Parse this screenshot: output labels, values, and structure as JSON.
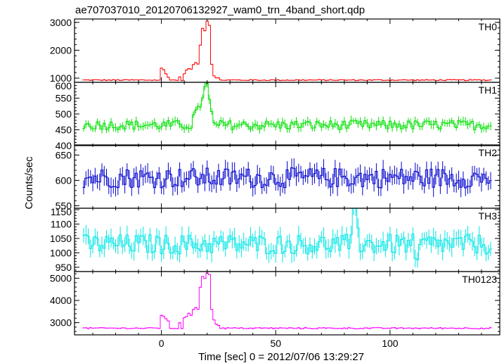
{
  "chart_data": {
    "type": "line",
    "title": "ae707037010_20120706132927_wam0_trn_4band_short.qdp",
    "xlabel": "Time [sec] 0 = 2012/07/06 13:29:27",
    "ylabel": "Counts/sec",
    "xlim": [
      -38,
      148
    ],
    "x_ticks": [
      0,
      50,
      100
    ],
    "series": [
      {
        "name": "TH0",
        "color": "#ff0000",
        "ylim": [
          850,
          3120
        ],
        "y_ticks": [
          1000,
          2000,
          3000
        ],
        "baseline": 930,
        "noise": 20,
        "bumps": [
          [
            0,
            1350
          ],
          [
            1,
            1300
          ],
          [
            2,
            1150
          ],
          [
            3,
            1050
          ],
          [
            8,
            1030
          ],
          [
            10,
            1150
          ],
          [
            11,
            1280
          ],
          [
            12,
            1350
          ],
          [
            13,
            1300
          ],
          [
            14,
            1500
          ],
          [
            15,
            1550
          ],
          [
            16,
            1500
          ],
          [
            17,
            2200
          ],
          [
            18,
            2800
          ],
          [
            19,
            2700
          ],
          [
            20,
            3050
          ],
          [
            21,
            2900
          ],
          [
            22,
            1500
          ],
          [
            23,
            1100
          ],
          [
            24,
            1000
          ],
          [
            25,
            1000
          ]
        ]
      },
      {
        "name": "TH1",
        "color": "#00e000",
        "ylim": [
          400,
          600
        ],
        "y_ticks": [
          400,
          450,
          500,
          550,
          600
        ],
        "baseline": 465,
        "noise": 15,
        "bumps": [
          [
            14,
            490
          ],
          [
            15,
            500
          ],
          [
            16,
            510
          ],
          [
            17,
            530
          ],
          [
            18,
            560
          ],
          [
            19,
            580
          ],
          [
            20,
            590
          ],
          [
            21,
            540
          ],
          [
            22,
            500
          ]
        ]
      },
      {
        "name": "TH2",
        "color": "#0000cd",
        "ylim": [
          545,
          670
        ],
        "y_ticks": [
          550,
          600,
          650
        ],
        "baseline": 605,
        "noise": 20,
        "bumps": []
      },
      {
        "name": "TH3",
        "color": "#00e6e6",
        "ylim": [
          935,
          1155
        ],
        "y_ticks": [
          950,
          1000,
          1050,
          1100,
          1150
        ],
        "baseline": 1030,
        "noise": 35,
        "bumps": [
          [
            84,
            1130
          ],
          [
            85,
            1140
          ],
          [
            86,
            1100
          ],
          [
            111,
            960
          ],
          [
            112,
            950
          ]
        ]
      },
      {
        "name": "TH0123",
        "color": "#ff00ff",
        "ylim": [
          2450,
          5300
        ],
        "y_ticks": [
          3000,
          4000,
          5000
        ],
        "baseline": 2750,
        "noise": 30,
        "bumps": [
          [
            0,
            3350
          ],
          [
            1,
            3300
          ],
          [
            2,
            3150
          ],
          [
            3,
            3050
          ],
          [
            8,
            3000
          ],
          [
            10,
            3200
          ],
          [
            11,
            3300
          ],
          [
            12,
            3400
          ],
          [
            13,
            3300
          ],
          [
            14,
            3600
          ],
          [
            15,
            3700
          ],
          [
            16,
            3600
          ],
          [
            17,
            4600
          ],
          [
            18,
            5100
          ],
          [
            19,
            5000
          ],
          [
            20,
            5250
          ],
          [
            21,
            5150
          ],
          [
            22,
            3600
          ],
          [
            23,
            3100
          ],
          [
            24,
            2950
          ],
          [
            25,
            2900
          ]
        ]
      }
    ]
  }
}
